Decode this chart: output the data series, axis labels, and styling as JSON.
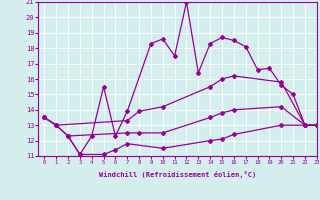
{
  "color": "#990099",
  "bg_color": "#d4eeee",
  "grid_color": "#ffffff",
  "xlabel": "Windchill (Refroidissement éolien,°C)",
  "ylim": [
    11,
    21
  ],
  "xlim": [
    -0.5,
    23
  ],
  "yticks": [
    11,
    12,
    13,
    14,
    15,
    16,
    17,
    18,
    19,
    20,
    21
  ],
  "xticks": [
    0,
    1,
    2,
    3,
    4,
    5,
    6,
    7,
    8,
    9,
    10,
    11,
    12,
    13,
    14,
    15,
    16,
    17,
    18,
    19,
    20,
    21,
    22,
    23
  ],
  "line_top_x": [
    0,
    1,
    2,
    3,
    4,
    5,
    6,
    7,
    9,
    10,
    11,
    12,
    13,
    14,
    15,
    16,
    17,
    18,
    19,
    20,
    21,
    22,
    23
  ],
  "line_top_y": [
    13.5,
    13.0,
    12.3,
    11.1,
    12.3,
    15.5,
    12.3,
    13.9,
    18.3,
    18.6,
    17.5,
    21.0,
    16.4,
    18.3,
    18.7,
    18.5,
    18.1,
    16.6,
    16.7,
    15.6,
    15.0,
    13.0,
    13.0
  ],
  "line_mu_x": [
    0,
    1,
    7,
    8,
    10,
    14,
    15,
    16,
    20,
    22,
    23
  ],
  "line_mu_y": [
    13.5,
    13.0,
    13.3,
    13.9,
    14.2,
    15.5,
    16.0,
    16.2,
    15.8,
    13.0,
    13.0
  ],
  "line_ml_x": [
    0,
    1,
    2,
    7,
    8,
    10,
    14,
    15,
    16,
    20,
    22,
    23
  ],
  "line_ml_y": [
    13.5,
    13.0,
    12.3,
    12.5,
    12.5,
    12.5,
    13.5,
    13.8,
    14.0,
    14.2,
    13.0,
    13.0
  ],
  "line_bot_x": [
    2,
    3,
    5,
    6,
    7,
    10,
    14,
    15,
    16,
    20,
    22,
    23
  ],
  "line_bot_y": [
    12.3,
    11.1,
    11.1,
    11.4,
    11.8,
    11.5,
    12.0,
    12.1,
    12.4,
    13.0,
    13.0,
    13.0
  ]
}
